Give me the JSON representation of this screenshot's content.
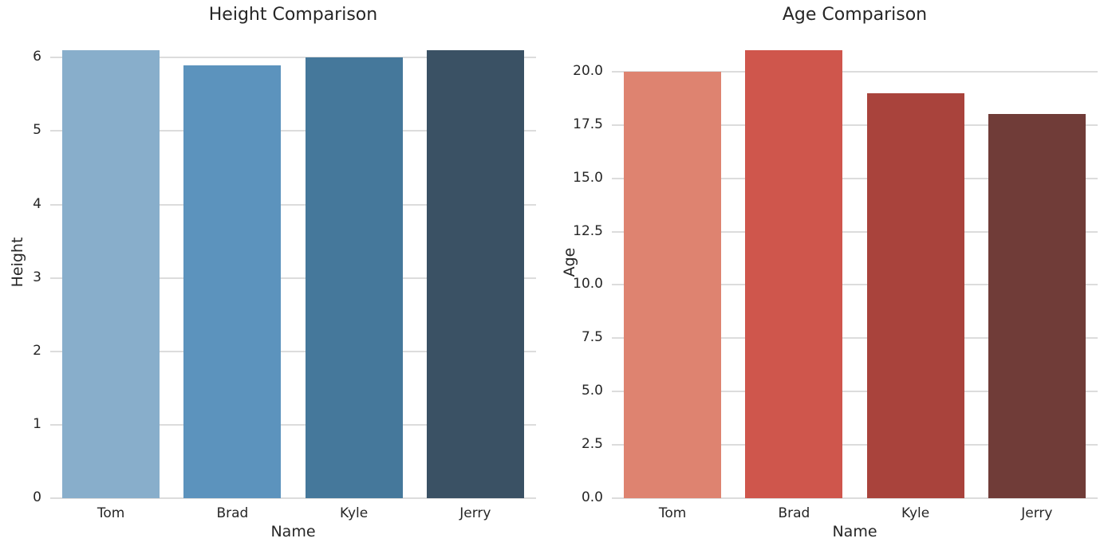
{
  "style": {
    "background_color": "#ffffff",
    "grid_color": "#dcdcdc",
    "text_color": "#262626"
  },
  "chart_data": [
    {
      "type": "bar",
      "title": "Height Comparison",
      "xlabel": "Name",
      "ylabel": "Height",
      "categories": [
        "Tom",
        "Brad",
        "Kyle",
        "Jerry"
      ],
      "values": [
        6.1,
        5.9,
        6.0,
        6.1
      ],
      "bar_colors": [
        "#88aecb",
        "#5c93bd",
        "#45789b",
        "#3a5164"
      ],
      "yticks": [
        0,
        1,
        2,
        3,
        4,
        5,
        6
      ],
      "ytick_labels": [
        "0",
        "1",
        "2",
        "3",
        "4",
        "5",
        "6"
      ],
      "ylim": [
        0,
        6.405
      ],
      "grid": true,
      "legend": "none"
    },
    {
      "type": "bar",
      "title": "Age Comparison",
      "xlabel": "Name",
      "ylabel": "Age",
      "categories": [
        "Tom",
        "Brad",
        "Kyle",
        "Jerry"
      ],
      "values": [
        20,
        21,
        19,
        18
      ],
      "bar_colors": [
        "#de8370",
        "#cf564c",
        "#a9433c",
        "#703c38"
      ],
      "yticks": [
        0,
        2.5,
        5,
        7.5,
        10,
        12.5,
        15,
        17.5,
        20
      ],
      "ytick_labels": [
        "0.0",
        "2.5",
        "5.0",
        "7.5",
        "10.0",
        "12.5",
        "15.0",
        "17.5",
        "20.0"
      ],
      "ylim": [
        0,
        22.05
      ],
      "grid": true,
      "legend": "none"
    }
  ]
}
